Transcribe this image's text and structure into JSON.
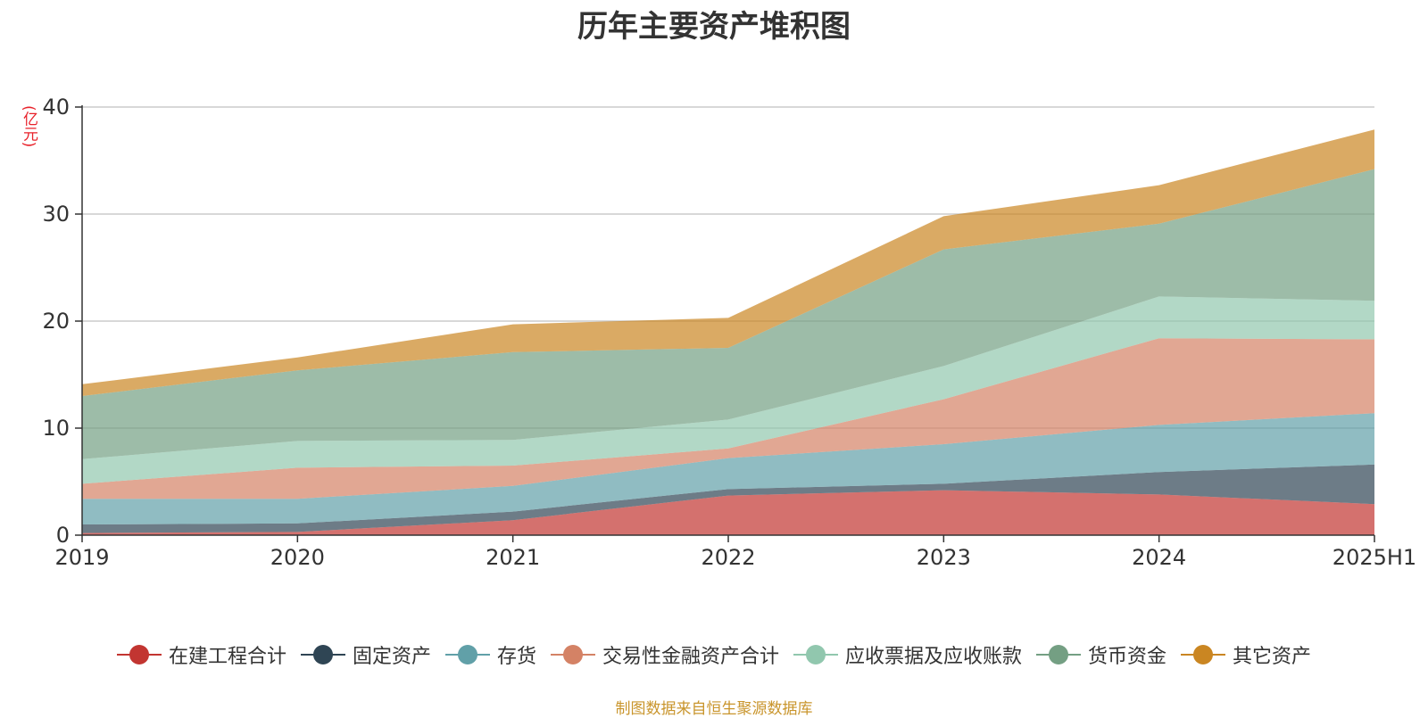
{
  "chart_data": {
    "type": "area",
    "stacked": true,
    "title": "历年主要资产堆积图",
    "unit_label": "(亿元)",
    "categories": [
      "2019",
      "2020",
      "2021",
      "2022",
      "2023",
      "2024",
      "2025H1"
    ],
    "ylim": [
      0,
      40
    ],
    "yticks": [
      "0",
      "10",
      "20",
      "30",
      "40"
    ],
    "grid": true,
    "legend_position": "bottom",
    "series": [
      {
        "name": "在建工程合计",
        "color": "#c23531",
        "values": [
          0.2,
          0.3,
          1.4,
          3.7,
          4.2,
          3.8,
          2.9
        ]
      },
      {
        "name": "固定资产",
        "color": "#2f4554",
        "values": [
          0.8,
          0.8,
          0.8,
          0.6,
          0.6,
          2.1,
          3.7
        ]
      },
      {
        "name": "存货",
        "color": "#61a0a8",
        "values": [
          2.4,
          2.3,
          2.4,
          2.9,
          3.7,
          4.4,
          4.8
        ]
      },
      {
        "name": "交易性金融资产合计",
        "color": "#d48265",
        "values": [
          1.4,
          2.9,
          1.9,
          0.9,
          4.2,
          8.1,
          6.9
        ]
      },
      {
        "name": "应收票据及应收账款",
        "color": "#91c7ae",
        "values": [
          2.3,
          2.5,
          2.4,
          2.7,
          3.1,
          3.9,
          3.6
        ]
      },
      {
        "name": "货币资金",
        "color": "#749f83",
        "values": [
          5.9,
          6.6,
          8.2,
          6.7,
          10.9,
          6.8,
          12.3
        ]
      },
      {
        "name": "其它资产",
        "color": "#ca8622",
        "values": [
          1.1,
          1.2,
          2.6,
          2.8,
          3.1,
          3.6,
          3.7
        ]
      }
    ]
  },
  "source_note": "制图数据来自恒生聚源数据库"
}
